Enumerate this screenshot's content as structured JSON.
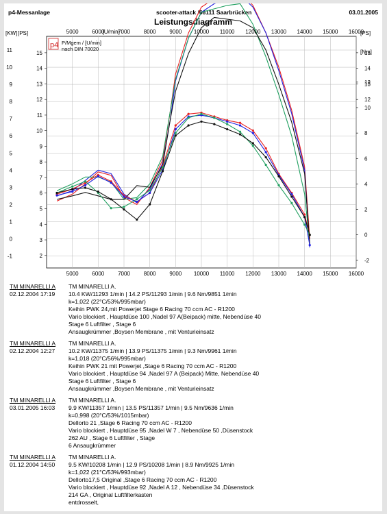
{
  "header": {
    "left": "p4-Messanlage",
    "center": "scooter-attack  /66111 Saarbrücken",
    "right": "03.01.2005",
    "title": "Leistungsdiagramm"
  },
  "legend": {
    "logo": "p4",
    "line1": "P/Mgem / [U/min]",
    "line2": "nach DIN 70020"
  },
  "chart_data": {
    "type": "line",
    "title": "Leistungsdiagramm",
    "xlabel": "[U/min]",
    "ylabel_left_kw": "[KW]",
    "ylabel_left_ps": "[PS]",
    "ylabel_right_ps": "[PS]",
    "ylabel_right_nm": "[Nm]",
    "xlim": [
      4000,
      16000
    ],
    "x_ticks": [
      "5000",
      "6000",
      "7000",
      "8000",
      "9000",
      "10000",
      "11000",
      "12000",
      "13000",
      "14000",
      "15000",
      "16000"
    ],
    "kw_ticks": [
      "-1",
      "0",
      "1",
      "2",
      "3",
      "4",
      "5",
      "6",
      "7",
      "8",
      "9",
      "10",
      "11"
    ],
    "ps_left_ticks": [
      "15",
      "14",
      "13",
      "12",
      "11",
      "10",
      "9",
      "8",
      "7",
      "6",
      "5",
      "4",
      "3",
      "2"
    ],
    "ps_right_ticks": [
      "15",
      "14",
      "13",
      "12"
    ],
    "nm_ticks": [
      "12",
      "10",
      "8",
      "6",
      "4",
      "2",
      "0",
      "-2"
    ],
    "grid": true,
    "power_series": [
      {
        "color": "#e82020",
        "x": [
          4400,
          5000,
          5500,
          6000,
          6500,
          7000,
          7500,
          8000,
          8500,
          8800,
          9000,
          9500,
          10000,
          10500,
          11000,
          11500,
          12000,
          12500,
          13000,
          13500,
          14000,
          14200
        ],
        "y": [
          2.2,
          2.6,
          3.2,
          3.9,
          3.7,
          2.4,
          2.0,
          3.0,
          4.6,
          7.5,
          9.6,
          12.0,
          13.5,
          14.0,
          14.3,
          14.4,
          13.6,
          12.0,
          10.0,
          7.5,
          4.2,
          0.0
        ]
      },
      {
        "color": "#2020e0",
        "x": [
          4400,
          5000,
          5500,
          6000,
          6500,
          7000,
          7500,
          8000,
          8500,
          8800,
          9000,
          9500,
          10000,
          10500,
          11000,
          11500,
          12000,
          12500,
          13000,
          13500,
          14000,
          14200
        ],
        "y": [
          2.5,
          2.8,
          3.4,
          4.0,
          3.8,
          2.6,
          2.1,
          2.9,
          4.4,
          7.0,
          9.2,
          11.7,
          13.2,
          13.7,
          14.0,
          14.2,
          13.5,
          12.0,
          9.8,
          7.3,
          4.0,
          -0.5
        ]
      },
      {
        "color": "#20a060",
        "x": [
          4400,
          5000,
          5500,
          6000,
          6500,
          7000,
          7500,
          8000,
          8500,
          8800,
          9000,
          9500,
          10000,
          10500,
          11000,
          11500,
          12000,
          12500,
          13000,
          13500,
          14000,
          14200
        ],
        "y": [
          2.8,
          3.2,
          3.6,
          3.6,
          3.3,
          2.3,
          2.4,
          3.2,
          4.8,
          7.5,
          9.3,
          11.7,
          13.2,
          13.4,
          13.6,
          13.7,
          12.5,
          10.6,
          8.4,
          6.0,
          2.6,
          -0.3
        ]
      },
      {
        "color": "#111111",
        "x": [
          4400,
          5000,
          5500,
          6000,
          6500,
          7000,
          7500,
          8000,
          8500,
          8800,
          9000,
          9500,
          10000,
          10500,
          11000,
          11500,
          12000,
          12500,
          13000,
          13500,
          14000,
          14200
        ],
        "y": [
          2.3,
          2.5,
          2.7,
          2.5,
          2.3,
          2.3,
          3.1,
          3.0,
          4.3,
          7.0,
          8.6,
          10.8,
          12.3,
          12.9,
          12.8,
          12.7,
          12.3,
          11.0,
          9.0,
          6.8,
          3.8,
          -0.3
        ]
      }
    ],
    "torque_series": [
      {
        "color": "#e82020",
        "x": [
          4400,
          5000,
          5500,
          6000,
          6500,
          7000,
          7500,
          8000,
          8500,
          9000,
          9500,
          10000,
          10500,
          11000,
          11500,
          12000,
          12500,
          13000,
          13500,
          14000,
          14200
        ],
        "y": [
          3.2,
          3.6,
          4.1,
          4.7,
          4.2,
          3.1,
          2.6,
          3.3,
          5.4,
          8.6,
          9.5,
          9.6,
          9.3,
          9.0,
          8.8,
          8.2,
          6.8,
          4.8,
          3.3,
          1.6,
          0.0
        ]
      },
      {
        "color": "#2020e0",
        "x": [
          4400,
          5000,
          5500,
          6000,
          6500,
          7000,
          7500,
          8000,
          8500,
          9000,
          9500,
          10000,
          10500,
          11000,
          11500,
          12000,
          12500,
          13000,
          13500,
          14000,
          14200
        ],
        "y": [
          3.1,
          3.4,
          3.9,
          4.6,
          4.1,
          3.0,
          2.6,
          3.3,
          5.1,
          8.3,
          9.3,
          9.4,
          9.2,
          8.9,
          8.6,
          8.0,
          6.5,
          4.7,
          3.2,
          1.4,
          -0.8
        ]
      },
      {
        "color": "#20a060",
        "x": [
          4400,
          5000,
          5500,
          6000,
          6500,
          7000,
          7500,
          8000,
          8500,
          9000,
          9500,
          10000,
          10500,
          11000,
          11500,
          12000,
          12500,
          13000,
          13500,
          14000,
          14200
        ],
        "y": [
          3.3,
          3.8,
          4.2,
          3.3,
          2.1,
          2.2,
          2.8,
          3.5,
          5.3,
          8.0,
          9.2,
          9.5,
          9.2,
          8.7,
          8.1,
          7.0,
          5.5,
          3.9,
          2.5,
          0.8,
          0.0
        ]
      },
      {
        "color": "#111111",
        "x": [
          4400,
          5000,
          5500,
          6000,
          6500,
          7000,
          7500,
          8000,
          8500,
          9000,
          9500,
          10000,
          10500,
          11000,
          11500,
          12000,
          12500,
          13000,
          13500,
          14000,
          14200
        ],
        "y": [
          3.3,
          3.6,
          3.7,
          3.4,
          2.8,
          2.0,
          1.2,
          2.4,
          5.0,
          7.8,
          8.6,
          8.9,
          8.7,
          8.3,
          7.9,
          7.2,
          6.1,
          4.6,
          3.0,
          1.4,
          0.0
        ]
      }
    ]
  },
  "runs": [
    {
      "name": "TM MINARELLI A",
      "date": "02.12.2004  17:19",
      "title": "TM MINARELLI A.",
      "lines": [
        "10.4 KW/11293 1/min  |  14.2 PS/11293 1/min  |  9.6 Nm/9851 1/min",
        "k=1,022 (22°C/53%/995mbar)",
        "Keihin PWK 24,mit Powerjet  Stage 6 Racing 70 ccm AC - R1200",
        "Vario blockiert , Hauptdüse 100 ,Nadel 97 A(Beipack) mitte, Nebendüse 40",
        " Stage 6 Luftfilter , Stage 6",
        "Ansaugkrümmer ,Boysen Membrane , mit Venturieinsatz"
      ]
    },
    {
      "name": "TM MINARELLI A",
      "date": "02.12.2004  12:27",
      "title": "TM MINARELLI A.",
      "lines": [
        "10.2 KW/11375 1/min  |  13.9 PS/11375 1/min  |  9.3 Nm/9961 1/min",
        "k=1,018 (20°C/56%/995mbar)",
        "Keihin PWK 21 mit Powerjet ,Stage 6 Racing 70 ccm AC - R1200",
        "Vario blockiert , Hauptdüse 94 ,Nadel 97 A (Beipack) Mitte, Nebendüse 40",
        " Stage 6 Luftfilter , Stage 6",
        "Ansaugkrümmer ,Boysen Membrane , mit Venturieinsatz"
      ]
    },
    {
      "name": "TM MINARELLI A",
      "date": "03.01.2005  16:03",
      "title": "TM MINARELLI A.",
      "lines": [
        "9.9 KW/11357 1/min  |  13.5 PS/11357 1/min  |  9.5 Nm/9636 1/min",
        "k=0,998 (20°C/53%/1015mbar)",
        "Dellorto 21 ,Stage 6 Racing 70 ccm AC - R1200",
        "Vario blockiert , Hauptdüse 95 ,Nadel W 7 ,  Nebendüse 50 ,Düsenstock",
        "262 AU , Stage 6 Luftfilter , Stage",
        "6  Ansaugkrümmer"
      ]
    },
    {
      "name": "TM MINARELLI A",
      "date": "01.12.2004  14:50",
      "title": "TM MINARELLI A.",
      "lines": [
        "9.5 KW/10208 1/min  |  12.9 PS/10208 1/min  |  8.9 Nm/9925 1/min",
        "k=1,022 (21°C/53%/993mbar)",
        "Dellorto17,5 Original ,Stage 6 Racing 70 ccm AC - R1200",
        "Vario blockiert , Hauptdüse 92 ,Nadel A 12 ,  Nebendüse 34 ,Düsenstock",
        "214 GA ,  Original Luftfilterkasten",
        "entdrosselt,"
      ]
    }
  ],
  "colors": {
    "red": "#e82020",
    "blue": "#2020e0",
    "green": "#20a060",
    "black": "#111111"
  }
}
